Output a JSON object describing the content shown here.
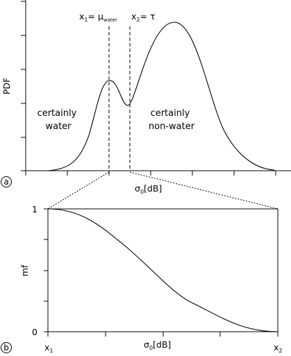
{
  "panel_a": {
    "panel_letter": "a",
    "ylabel": "PDF",
    "xlabel": {
      "main": "σ",
      "sub": "0",
      "rest": "[dB]"
    },
    "threshold_labels": {
      "x1": {
        "main": "x",
        "sub": "1",
        "eq": "= μ",
        "eq_sub": "water"
      },
      "x2": {
        "main": "x",
        "sub": "2",
        "eq": "= τ"
      }
    },
    "left_region_label": [
      "certainly",
      "water"
    ],
    "right_region_label": [
      "certainly",
      "non-water"
    ]
  },
  "panel_b": {
    "panel_letter": "b",
    "ylabel": "mf",
    "xlabel": {
      "main": "σ",
      "sub": "0",
      "rest": "[dB]"
    },
    "yticks": [
      "1",
      "0"
    ],
    "xtick_left": {
      "main": "x",
      "sub": "1"
    },
    "xtick_right": {
      "main": "x",
      "sub": "2"
    }
  },
  "colors": {
    "line": "#000000",
    "background": "#ffffff"
  }
}
